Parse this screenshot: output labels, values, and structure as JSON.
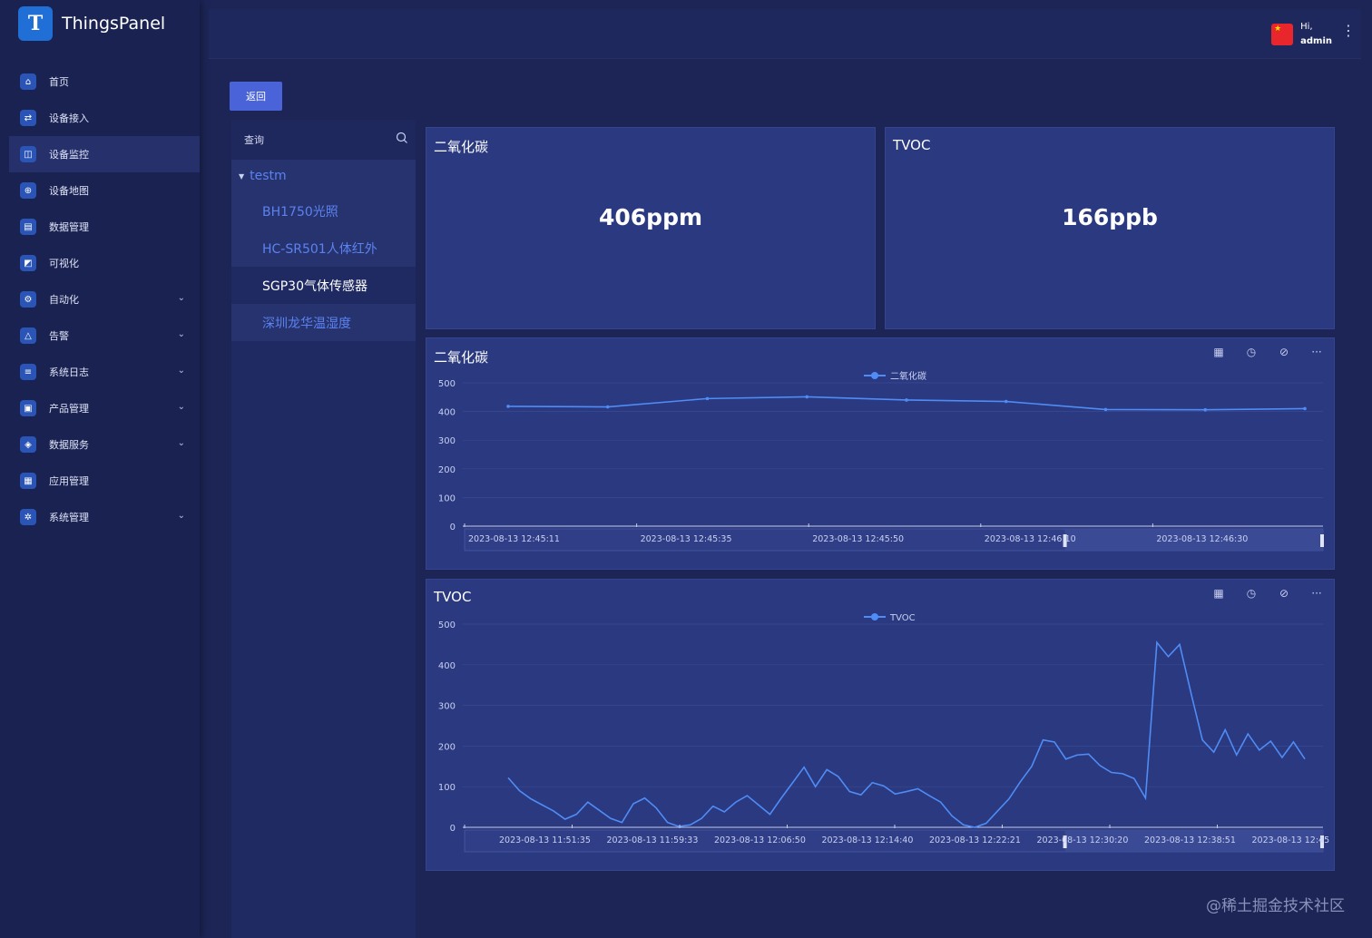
{
  "app": {
    "name": "ThingsPanel",
    "logo_letter": "T"
  },
  "header": {
    "greeting": "Hi,",
    "username": "admin",
    "more_icon": "more-vertical-icon"
  },
  "sidebar": {
    "items": [
      {
        "label": "首页",
        "icon": "home-icon",
        "has_children": false,
        "active": false
      },
      {
        "label": "设备接入",
        "icon": "device-access-icon",
        "has_children": false,
        "active": false
      },
      {
        "label": "设备监控",
        "icon": "monitor-icon",
        "has_children": false,
        "active": true
      },
      {
        "label": "设备地图",
        "icon": "map-icon",
        "has_children": false,
        "active": false
      },
      {
        "label": "数据管理",
        "icon": "data-icon",
        "has_children": false,
        "active": false
      },
      {
        "label": "可视化",
        "icon": "visualize-icon",
        "has_children": false,
        "active": false
      },
      {
        "label": "自动化",
        "icon": "automation-icon",
        "has_children": true,
        "active": false
      },
      {
        "label": "告警",
        "icon": "alarm-icon",
        "has_children": true,
        "active": false
      },
      {
        "label": "系统日志",
        "icon": "log-icon",
        "has_children": true,
        "active": false
      },
      {
        "label": "产品管理",
        "icon": "product-icon",
        "has_children": true,
        "active": false
      },
      {
        "label": "数据服务",
        "icon": "data-service-icon",
        "has_children": true,
        "active": false
      },
      {
        "label": "应用管理",
        "icon": "app-icon",
        "has_children": false,
        "active": false
      },
      {
        "label": "系统管理",
        "icon": "settings-icon",
        "has_children": true,
        "active": false
      }
    ]
  },
  "toolbar": {
    "back_label": "返回"
  },
  "device_panel": {
    "search_placeholder": "查询",
    "group": "testm",
    "devices": [
      {
        "name": "BH1750光照",
        "selected": false
      },
      {
        "name": "HC-SR501人体红外",
        "selected": false
      },
      {
        "name": "SGP30气体传感器",
        "selected": true
      },
      {
        "name": "深圳龙华温湿度",
        "selected": false
      }
    ]
  },
  "cards": {
    "co2": {
      "title": "二氧化碳",
      "value": "406ppm"
    },
    "tvoc": {
      "title": "TVOC",
      "value": "166ppb"
    }
  },
  "chart_data": [
    {
      "type": "line",
      "title": "二氧化碳",
      "legend": "二氧化碳",
      "legend_position": "top-center",
      "ylim": [
        0,
        500
      ],
      "yticks": [
        0,
        100,
        200,
        300,
        400,
        500
      ],
      "grid": true,
      "x_tick_labels": [
        "2023-08-13 12:45:11",
        "2023-08-13 12:45:35",
        "2023-08-13 12:45:50",
        "2023-08-13 12:46:10",
        "2023-08-13 12:46:30"
      ],
      "series": [
        {
          "name": "二氧化碳",
          "values": [
            418,
            416,
            445,
            451,
            440,
            435,
            407,
            406,
            410
          ]
        }
      ],
      "color": "#4f8cf5"
    },
    {
      "type": "line",
      "title": "TVOC",
      "legend": "TVOC",
      "legend_position": "top-center",
      "ylim": [
        0,
        500
      ],
      "yticks": [
        0,
        100,
        200,
        300,
        400,
        500
      ],
      "grid": true,
      "x_tick_labels": [
        "2023-08-13 11:51:35",
        "2023-08-13 11:59:33",
        "2023-08-13 12:06:50",
        "2023-08-13 12:14:40",
        "2023-08-13 12:22:21",
        "2023-08-13 12:30:20",
        "2023-08-13 12:38:51",
        "2023-08-13 12:45"
      ],
      "series": [
        {
          "name": "TVOC",
          "values": [
            122,
            90,
            70,
            55,
            40,
            20,
            32,
            62,
            42,
            22,
            12,
            58,
            72,
            48,
            12,
            2,
            6,
            22,
            52,
            38,
            62,
            78,
            55,
            32,
            72,
            110,
            148,
            100,
            142,
            125,
            88,
            80,
            110,
            102,
            82,
            88,
            95,
            78,
            62,
            28,
            6,
            0,
            10,
            40,
            70,
            112,
            150,
            215,
            210,
            168,
            178,
            180,
            152,
            135,
            132,
            120,
            72,
            455,
            420,
            450,
            330,
            215,
            185,
            240,
            178,
            230,
            190,
            212,
            172,
            210,
            168
          ]
        }
      ],
      "color": "#4f8cf5"
    }
  ],
  "chart_tools": [
    "calendar-icon",
    "clock-icon",
    "compass-icon",
    "more-horizontal-icon"
  ],
  "watermark": "@稀土掘金技术社区"
}
